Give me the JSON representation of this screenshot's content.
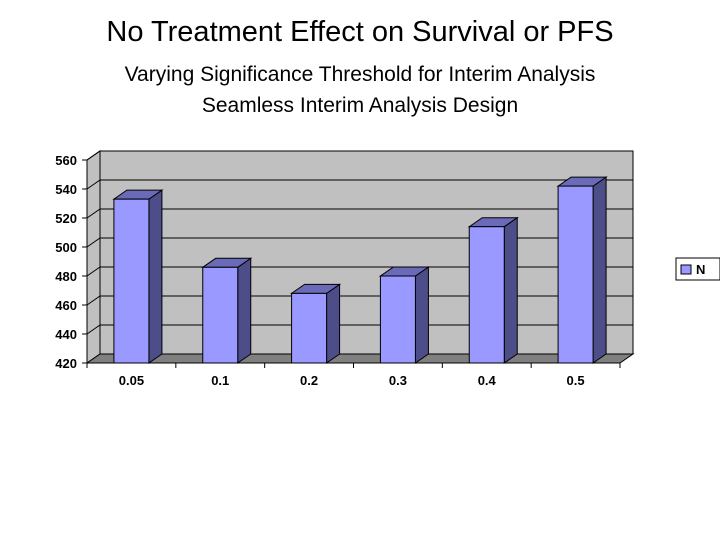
{
  "slide": {
    "title": "No Treatment Effect on Survival or PFS",
    "subtitle_line1": "Varying Significance Threshold for Interim Analysis",
    "subtitle_line2": "Seamless Interim Analysis Design"
  },
  "colors": {
    "bar_front": "#9999ff",
    "bar_side": "#4d4d8a",
    "bar_top": "#6a6ab8",
    "wall": "#c0c0c0",
    "floor": "#808080",
    "gridline": "#000000"
  },
  "chart_data": {
    "type": "bar",
    "title": "",
    "xlabel": "",
    "ylabel": "",
    "categories": [
      "0.05",
      "0.1",
      "0.2",
      "0.3",
      "0.4",
      "0.5"
    ],
    "series": [
      {
        "name": "N",
        "values": [
          533,
          486,
          468,
          480,
          514,
          542
        ]
      }
    ],
    "ylim": [
      420,
      560
    ],
    "yticks": [
      420,
      440,
      460,
      480,
      500,
      520,
      540,
      560
    ],
    "grid": true,
    "legend": "right",
    "style": "3d-column"
  }
}
